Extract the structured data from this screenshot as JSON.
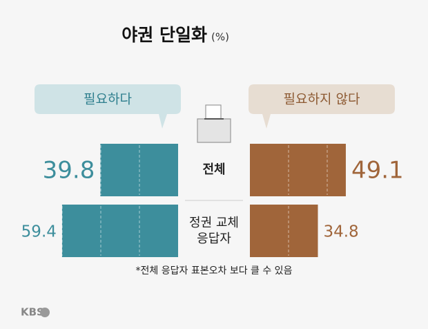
{
  "chart_data": {
    "type": "diverging-bar",
    "title": "야권 단일화",
    "unit": "(%)",
    "categories": [
      "전체",
      "정권 교체 응답자"
    ],
    "series": [
      {
        "name": "필요하다",
        "color": "#3d8e9c",
        "values": [
          39.8,
          59.4
        ]
      },
      {
        "name": "필요하지 않다",
        "color": "#a0653a",
        "values": [
          49.1,
          34.8
        ]
      }
    ],
    "footnote": "*전체 응답자 표본오차 보다 클 수 있음"
  },
  "logo": "KBS"
}
